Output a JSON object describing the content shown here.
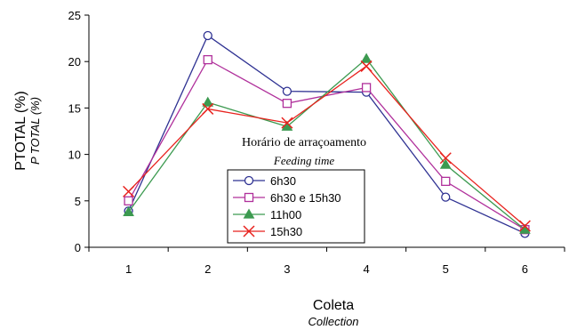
{
  "chart_data": {
    "type": "line",
    "categories": [
      "1",
      "2",
      "3",
      "4",
      "5",
      "6"
    ],
    "ylim": [
      0,
      25
    ],
    "yticks": [
      0,
      5,
      10,
      15,
      20,
      25
    ],
    "ylabel": "PTOTAL (%)",
    "ylabel_sub": "P TOTAL (%)",
    "xlabel": "Coleta",
    "xlabel_sub": "Collection",
    "grid": false,
    "legend": {
      "title": "Horário de arraçoamento",
      "subtitle": "Feeding time",
      "placement": "center-bottom"
    },
    "series": [
      {
        "name": "6h30",
        "values": [
          3.9,
          22.8,
          16.8,
          16.7,
          5.4,
          1.5
        ],
        "color": "#2e3192",
        "marker": "circle"
      },
      {
        "name": "6h30 e 15h30",
        "values": [
          5.0,
          20.2,
          15.5,
          17.2,
          7.1,
          1.9
        ],
        "color": "#b0309b",
        "marker": "square"
      },
      {
        "name": "11h00",
        "values": [
          3.8,
          15.6,
          13.0,
          20.3,
          8.9,
          1.9
        ],
        "color": "#3c9a50",
        "marker": "triangle"
      },
      {
        "name": "15h30",
        "values": [
          6.0,
          14.9,
          13.4,
          19.5,
          9.6,
          2.3
        ],
        "color": "#e8221e",
        "marker": "cross"
      }
    ]
  }
}
